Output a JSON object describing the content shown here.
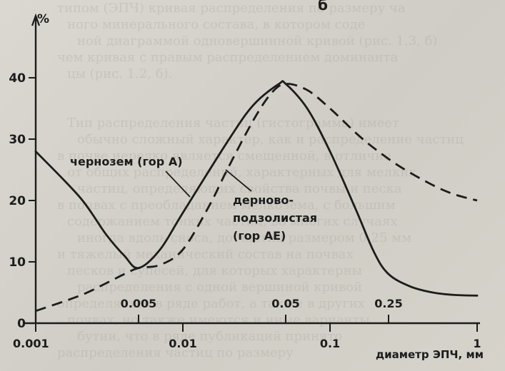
{
  "chart_data": {
    "type": "line",
    "panel_label": "б",
    "ylabel": "%",
    "xlabel": "диаметр ЭПЧ, мм",
    "x_scale": "log",
    "xlim": [
      0.001,
      1.0
    ],
    "ylim": [
      0,
      45
    ],
    "y_ticks": [
      {
        "value": 0,
        "label": "0"
      },
      {
        "value": 10,
        "label": "10"
      },
      {
        "value": 20,
        "label": "20"
      },
      {
        "value": 30,
        "label": "30"
      },
      {
        "value": 40,
        "label": "40"
      }
    ],
    "x_ticks_bottom": [
      {
        "value": 0.001,
        "label": "0.001"
      },
      {
        "value": 0.01,
        "label": "0.01"
      },
      {
        "value": 0.1,
        "label": "0.1"
      },
      {
        "value": 1,
        "label": "1"
      }
    ],
    "x_ticks_top": [
      {
        "value": 0.005,
        "label": "0.005"
      },
      {
        "value": 0.05,
        "label": "0.05"
      },
      {
        "value": 0.25,
        "label": "0.25"
      }
    ],
    "series": [
      {
        "name": "чернозем (гор А)",
        "style": "solid",
        "x": [
          0.001,
          0.002,
          0.003,
          0.004,
          0.005,
          0.007,
          0.01,
          0.02,
          0.03,
          0.045,
          0.05,
          0.07,
          0.1,
          0.15,
          0.2,
          0.25,
          0.35,
          0.5,
          0.7,
          1.0
        ],
        "y": [
          28,
          20.5,
          14.5,
          11,
          9,
          12,
          18,
          29.5,
          35.5,
          39,
          39,
          35,
          28,
          18.5,
          11.5,
          8,
          6,
          5,
          4.6,
          4.5
        ]
      },
      {
        "name": "дерново-подзолистая (гор АЕ)",
        "style": "dashed",
        "x": [
          0.001,
          0.002,
          0.003,
          0.004,
          0.005,
          0.007,
          0.01,
          0.015,
          0.02,
          0.03,
          0.04,
          0.05,
          0.07,
          0.1,
          0.15,
          0.2,
          0.3,
          0.5,
          0.7,
          1.0
        ],
        "y": [
          2,
          4.5,
          6.5,
          8,
          9,
          9.5,
          12,
          19,
          25,
          33,
          37.5,
          39,
          38,
          35,
          31,
          28.5,
          25.5,
          22.5,
          21,
          20
        ]
      }
    ],
    "annotations": [
      {
        "text": "чернозем (гор А)"
      },
      {
        "text": "дерново-"
      },
      {
        "text": "подзолистая"
      },
      {
        "text": "(гор АЕ)"
      }
    ]
  },
  "background_text": [
    "типом (ЭПЧ) кривая распределения по размеру ча",
    "ного минерального состава, в котором соде",
    "ной диаграммой одновершинной кривой (рис. 1.3, б)",
    "чем кривая с правым распределением доминанта",
    "цы (рис. 1.2, б).",
    "",
    "",
    "Тип распределения частиц (гистограмма) имеет",
    "обычно сложный характер, как и распределение частиц",
    "в почве нередко является смещенной, в отличие",
    "от общих распределений, характерных для мелких",
    "частиц, определяющих свойства почвы и песка",
    "в почвах с преобладанием мелкозема, с большим",
    "содержанием тонких частиц, во многих случаях",
    "иногда вдоль сноса, до частиц размером 0,25 мм",
    "и тяжелый механический состав на почвах",
    "песков и супесей, для которых характерны",
    "распределения с одной вершиной кривой",
    "определяется в ряде работ, а также в других",
    "почвах, но также имеются и иные варианты",
    "бутии, что в ряде публикаций принято",
    "распределения частиц по размеру"
  ]
}
